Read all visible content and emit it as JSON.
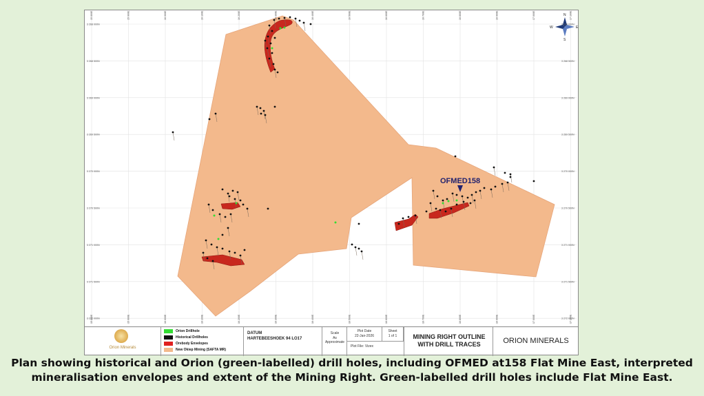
{
  "map": {
    "callout_label": "OFMED158",
    "top_ticks": [
      "15 800E",
      "15 900E",
      "16 000E",
      "16 100E",
      "16 200E",
      "16 300E",
      "16 400E",
      "16 500E",
      "16 600E",
      "16 700E",
      "16 800E",
      "16 900E",
      "17 000E",
      "17 100E"
    ],
    "bottom_ticks": [
      "15 800E",
      "15 900E",
      "16 000E",
      "16 100E",
      "16 200E",
      "16 300E",
      "16 400E",
      "16 500E",
      "16 600E",
      "16 700E",
      "16 800E",
      "16 900E",
      "17 000E",
      "17 100E"
    ],
    "left_ticks": [
      "3 268 000N",
      "3 268 500N",
      "3 269 000N",
      "3 269 500N",
      "3 270 000N",
      "3 270 500N",
      "3 271 000N",
      "3 271 500N",
      "3 272 000N"
    ],
    "right_ticks": [
      "3 268 000N",
      "3 268 500N",
      "3 269 000N",
      "3 269 500N",
      "3 270 000N",
      "3 270 500N",
      "3 271 000N",
      "3 271 500N",
      "3 272 000N"
    ],
    "compass": {
      "n": "N",
      "s": "S",
      "e": "E",
      "w": "W"
    },
    "colors": {
      "mining_right": "#f3b98c",
      "orebody": "#c8281e",
      "historical": "#111111",
      "orion": "#33dd33"
    }
  },
  "title_block": {
    "company_logo_text": "Orion Minerals",
    "legend": [
      {
        "label": "Orion Drillhole",
        "color": "#33dd33"
      },
      {
        "label": "Historical Drillholes",
        "color": "#111111"
      },
      {
        "label": "Orebody Envelopes",
        "color": "#e02020"
      },
      {
        "label": "New Okiep Mining (SAFTA MR)",
        "color": "#f3b98c"
      }
    ],
    "datum_label": "DATUM",
    "datum_value": "HARTEBEESHOEK 94 LO17",
    "scale_label": "Scale",
    "scale_value": "As Approximate",
    "plot_date_label": "Plot Date",
    "plot_date_value": "22-Jan-2026",
    "sheet_label": "Sheet",
    "sheet_value": "1 of 1",
    "plot_file": "Plot File: Vizex",
    "drawing_title_line1": "MINING RIGHT OUTLINE",
    "drawing_title_line2": "WITH DRILL TRACES",
    "company_name": "ORION MINERALS"
  },
  "caption": {
    "line1": "Plan showing historical and Orion (green-labelled) drill holes, including OFMED at158 Flat Mine East, interpreted",
    "line2": "mineralisation envelopes and extent of the Mining Right. Green-labelled drill holes include Flat Mine East."
  }
}
